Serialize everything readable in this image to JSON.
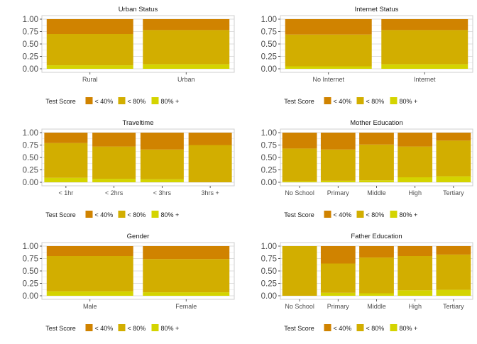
{
  "colors": {
    "lt40": "#D08300",
    "lt80": "#D2AE00",
    "ge80": "#D4D400",
    "grid": "#DEDEDE",
    "frame": "#CFCFCF",
    "text": "#4D4D4D",
    "title": "#1A1A1A"
  },
  "legend": {
    "title": "Test Score",
    "labels": [
      "< 40%",
      "< 80%",
      "80% +"
    ]
  },
  "chart_data": [
    {
      "type": "bar",
      "stacked": true,
      "title": "Urban Status",
      "categories": [
        "Rural",
        "Urban"
      ],
      "series": [
        {
          "name": "< 40%",
          "values": [
            0.3,
            0.22
          ]
        },
        {
          "name": "< 80%",
          "values": [
            0.63,
            0.69
          ]
        },
        {
          "name": "80% +",
          "values": [
            0.07,
            0.09
          ]
        }
      ],
      "ylim": [
        0,
        1
      ],
      "yticks": [
        "0.00",
        "0.25",
        "0.50",
        "0.75",
        "1.00"
      ],
      "grid": true
    },
    {
      "type": "bar",
      "stacked": true,
      "title": "Internet Status",
      "categories": [
        "No Internet",
        "Internet"
      ],
      "series": [
        {
          "name": "< 40%",
          "values": [
            0.31,
            0.22
          ]
        },
        {
          "name": "< 80%",
          "values": [
            0.64,
            0.69
          ]
        },
        {
          "name": "80% +",
          "values": [
            0.05,
            0.09
          ]
        }
      ],
      "ylim": [
        0,
        1
      ],
      "yticks": [
        "0.00",
        "0.25",
        "0.50",
        "0.75",
        "1.00"
      ],
      "grid": true
    },
    {
      "type": "bar",
      "stacked": true,
      "title": "Traveltime",
      "categories": [
        "< 1hr",
        "< 2hrs",
        "< 3hrs",
        "3hrs +"
      ],
      "series": [
        {
          "name": "< 40%",
          "values": [
            0.21,
            0.28,
            0.34,
            0.25
          ]
        },
        {
          "name": "< 80%",
          "values": [
            0.7,
            0.65,
            0.6,
            0.75
          ]
        },
        {
          "name": "80% +",
          "values": [
            0.09,
            0.07,
            0.06,
            0.0
          ]
        }
      ],
      "ylim": [
        0,
        1
      ],
      "yticks": [
        "0.00",
        "0.25",
        "0.50",
        "0.75",
        "1.00"
      ],
      "grid": true
    },
    {
      "type": "bar",
      "stacked": true,
      "title": "Mother Education",
      "categories": [
        "No School",
        "Primary",
        "Middle",
        "High",
        "Tertiary"
      ],
      "series": [
        {
          "name": "< 40%",
          "values": [
            0.32,
            0.34,
            0.24,
            0.28,
            0.16
          ]
        },
        {
          "name": "< 80%",
          "values": [
            0.66,
            0.63,
            0.72,
            0.62,
            0.72
          ]
        },
        {
          "name": "80% +",
          "values": [
            0.02,
            0.03,
            0.04,
            0.1,
            0.12
          ]
        }
      ],
      "ylim": [
        0,
        1
      ],
      "yticks": [
        "0.00",
        "0.25",
        "0.50",
        "0.75",
        "1.00"
      ],
      "grid": true
    },
    {
      "type": "bar",
      "stacked": true,
      "title": "Gender",
      "categories": [
        "Male",
        "Female"
      ],
      "series": [
        {
          "name": "< 40%",
          "values": [
            0.2,
            0.26
          ]
        },
        {
          "name": "< 80%",
          "values": [
            0.71,
            0.67
          ]
        },
        {
          "name": "80% +",
          "values": [
            0.09,
            0.07
          ]
        }
      ],
      "ylim": [
        0,
        1
      ],
      "yticks": [
        "0.00",
        "0.25",
        "0.50",
        "0.75",
        "1.00"
      ],
      "grid": true
    },
    {
      "type": "bar",
      "stacked": true,
      "title": "Father Education",
      "categories": [
        "No School",
        "Primary",
        "Middle",
        "High",
        "Tertiary"
      ],
      "series": [
        {
          "name": "< 40%",
          "values": [
            0.0,
            0.35,
            0.23,
            0.2,
            0.17
          ]
        },
        {
          "name": "< 80%",
          "values": [
            1.0,
            0.59,
            0.72,
            0.69,
            0.71
          ]
        },
        {
          "name": "80% +",
          "values": [
            0.0,
            0.06,
            0.05,
            0.11,
            0.12
          ]
        }
      ],
      "ylim": [
        0,
        1
      ],
      "yticks": [
        "0.00",
        "0.25",
        "0.50",
        "0.75",
        "1.00"
      ],
      "grid": true
    }
  ]
}
